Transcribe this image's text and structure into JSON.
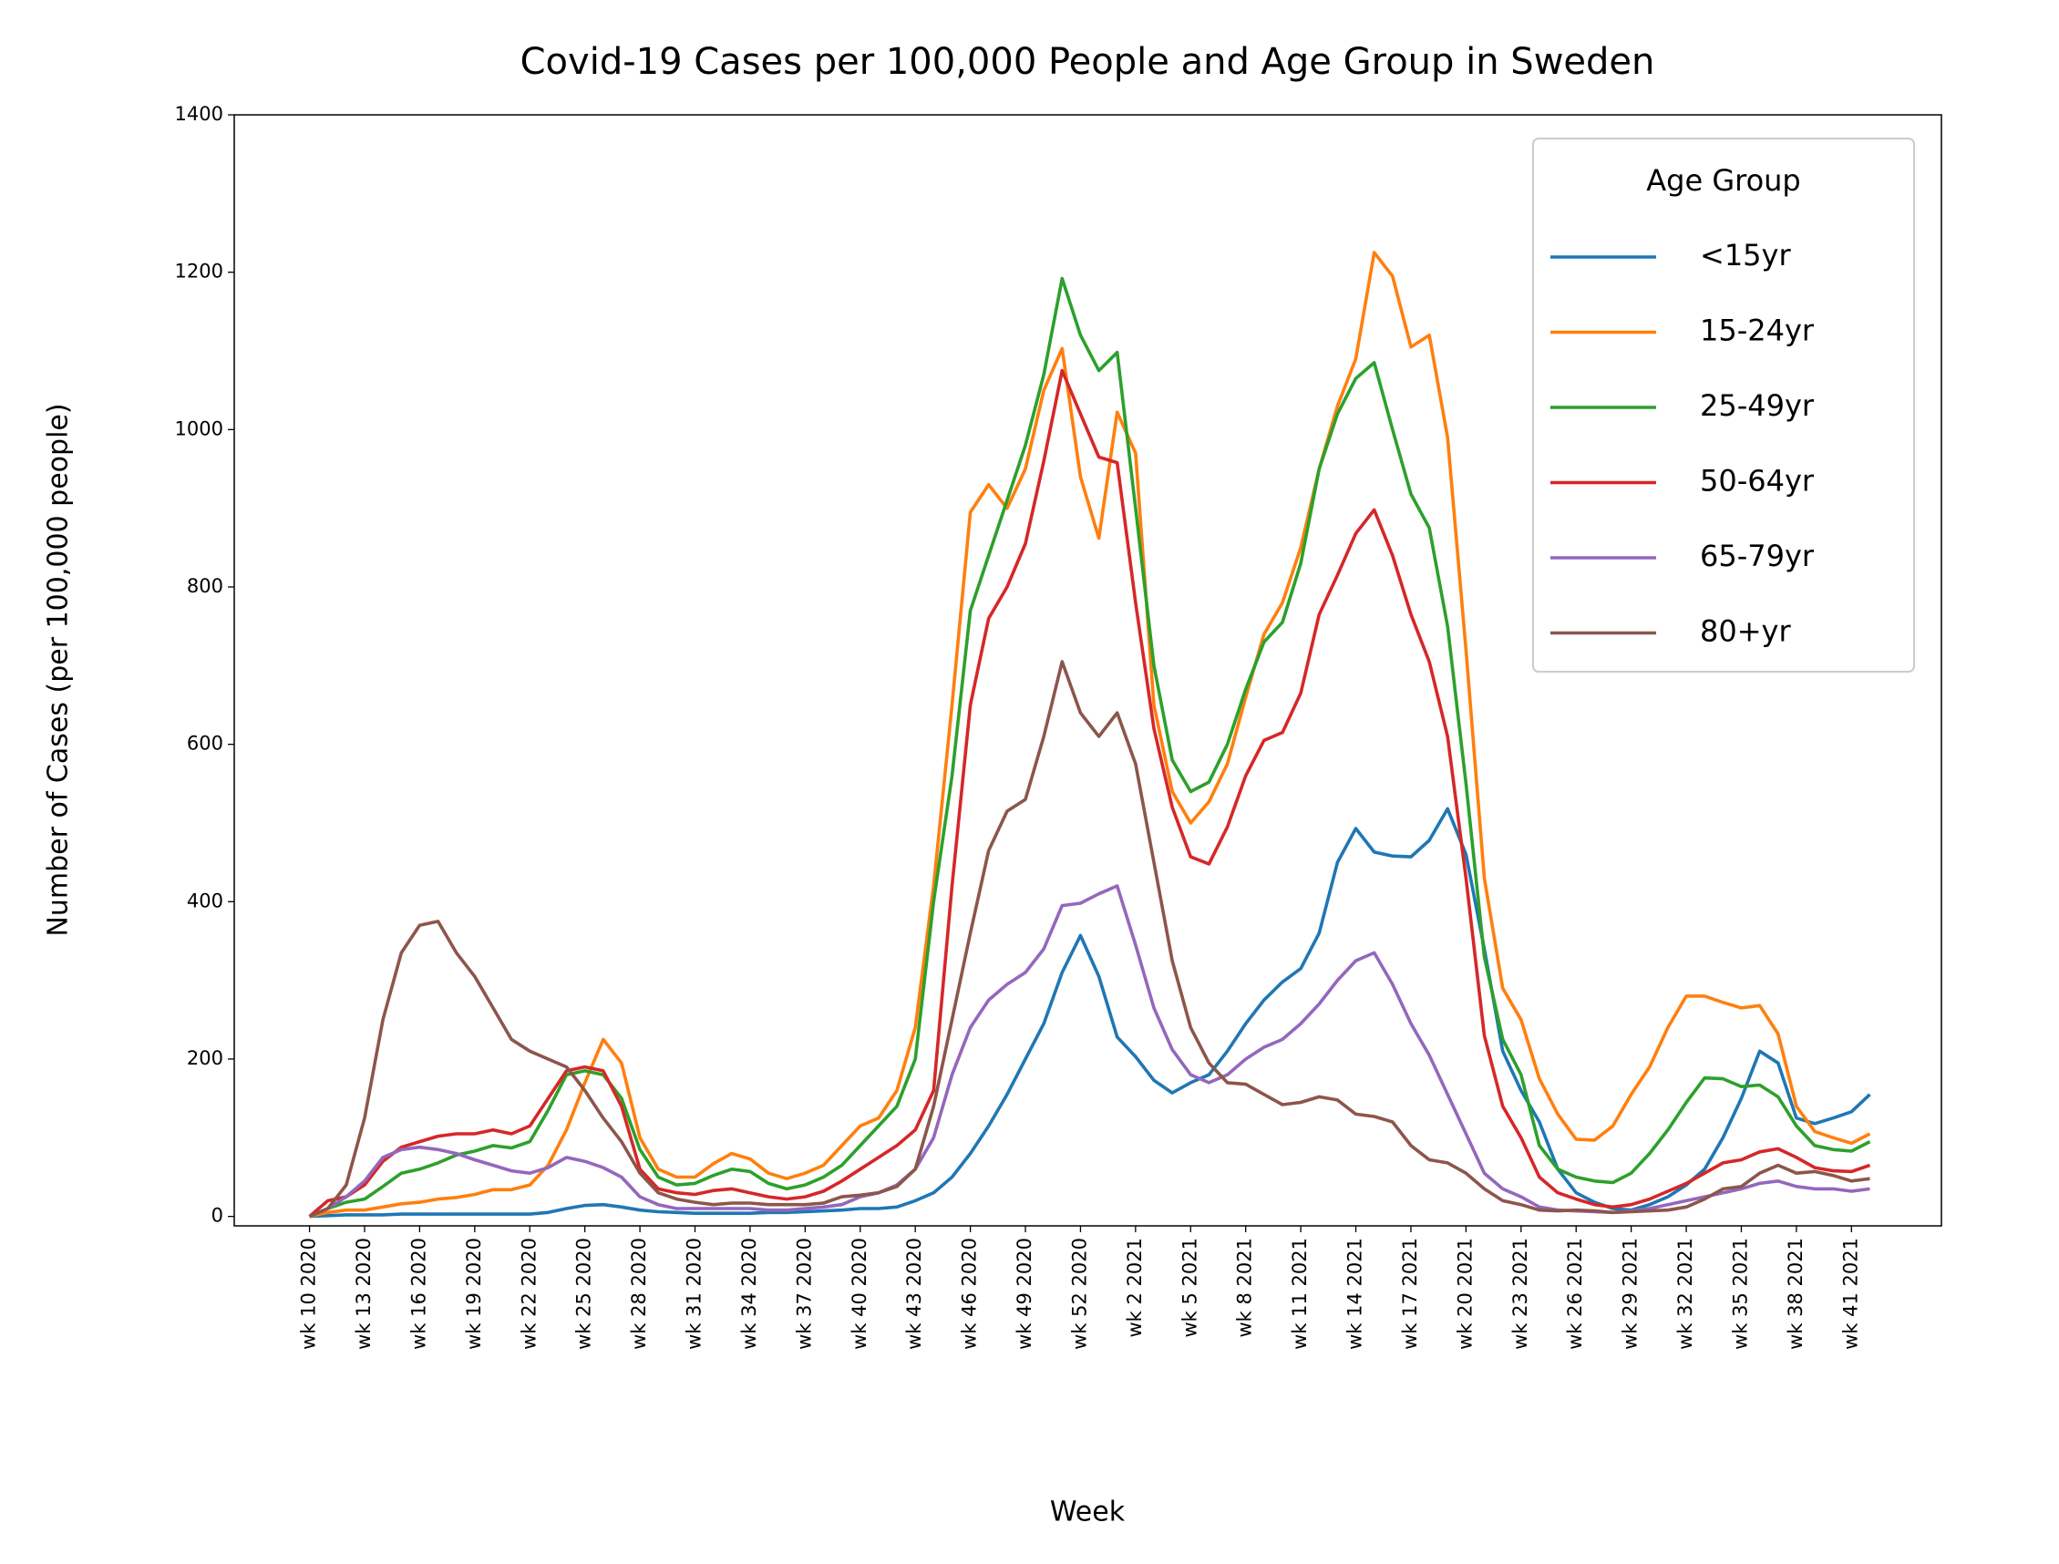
{
  "chart_data": {
    "type": "line",
    "title": "Covid-19 Cases per 100,000 People and Age Group in Sweden",
    "xlabel": "Week",
    "ylabel": "Number of Cases (per 100,000 people)",
    "categories": [
      "wk 10 2020",
      null,
      null,
      "wk 13 2020",
      null,
      null,
      "wk 16 2020",
      null,
      null,
      "wk 19 2020",
      null,
      null,
      "wk 22 2020",
      null,
      null,
      "wk 25 2020",
      null,
      null,
      "wk 28 2020",
      null,
      null,
      "wk 31 2020",
      null,
      null,
      "wk 34 2020",
      null,
      null,
      "wk 37 2020",
      null,
      null,
      "wk 40 2020",
      null,
      null,
      "wk 43 2020",
      null,
      null,
      "wk 46 2020",
      null,
      null,
      "wk 49 2020",
      null,
      null,
      "wk 52 2020",
      null,
      null,
      "wk 2 2021",
      null,
      null,
      "wk 5 2021",
      null,
      null,
      "wk 8 2021",
      null,
      null,
      "wk 11 2021",
      null,
      null,
      "wk 14 2021",
      null,
      null,
      "wk 17 2021",
      null,
      null,
      "wk 20 2021",
      null,
      null,
      "wk 23 2021",
      null,
      null,
      "wk 26 2021",
      null,
      null,
      "wk 29 2021",
      null,
      null,
      "wk 32 2021",
      null,
      null,
      "wk 35 2021",
      null,
      null,
      "wk 38 2021",
      null,
      null,
      "wk 41 2021",
      null
    ],
    "legend_title": "Age Group",
    "legend": "upper right",
    "series": [
      {
        "name": "<15yr",
        "color": "#1f77b4",
        "values": [
          0,
          1,
          2,
          2,
          2,
          3,
          3,
          3,
          3,
          3,
          3,
          3,
          3,
          5,
          10,
          14,
          15,
          12,
          8,
          6,
          5,
          4,
          4,
          4,
          4,
          5,
          5,
          6,
          7,
          8,
          10,
          10,
          12,
          20,
          30,
          50,
          80,
          115,
          155,
          200,
          245,
          310,
          357,
          305,
          228,
          203,
          173,
          157,
          170,
          180,
          210,
          245,
          275,
          298,
          315,
          360,
          450,
          493,
          463,
          458,
          457,
          478,
          518,
          460,
          340,
          210,
          160,
          120,
          60,
          30,
          18,
          10,
          8,
          15,
          25,
          40,
          60,
          100,
          150,
          210,
          195,
          125,
          118,
          125,
          133,
          155
        ]
      },
      {
        "name": "15-24yr",
        "color": "#ff7f0e",
        "values": [
          0,
          5,
          8,
          8,
          12,
          16,
          18,
          22,
          24,
          28,
          34,
          34,
          40,
          65,
          110,
          170,
          225,
          195,
          100,
          60,
          50,
          50,
          67,
          80,
          73,
          55,
          48,
          55,
          65,
          90,
          115,
          125,
          160,
          240,
          420,
          650,
          895,
          930,
          900,
          950,
          1050,
          1103,
          940,
          862,
          1022,
          970,
          650,
          540,
          500,
          527,
          575,
          660,
          740,
          780,
          850,
          950,
          1030,
          1090,
          1225,
          1195,
          1105,
          1120,
          990,
          720,
          430,
          290,
          250,
          175,
          130,
          98,
          97,
          115,
          155,
          190,
          240,
          280,
          280,
          272,
          265,
          268,
          232,
          140,
          108,
          100,
          93,
          105
        ]
      },
      {
        "name": "25-49yr",
        "color": "#2ca02c",
        "values": [
          0,
          10,
          18,
          22,
          38,
          55,
          60,
          68,
          78,
          83,
          90,
          87,
          95,
          135,
          180,
          185,
          180,
          150,
          85,
          50,
          40,
          42,
          52,
          60,
          57,
          42,
          35,
          40,
          50,
          65,
          90,
          115,
          140,
          200,
          400,
          560,
          770,
          840,
          910,
          980,
          1070,
          1192,
          1120,
          1075,
          1098,
          900,
          700,
          580,
          540,
          552,
          600,
          670,
          730,
          755,
          830,
          950,
          1020,
          1065,
          1085,
          1000,
          918,
          875,
          750,
          550,
          330,
          225,
          180,
          90,
          60,
          50,
          45,
          43,
          55,
          80,
          110,
          145,
          176,
          175,
          165,
          167,
          152,
          115,
          90,
          85,
          83,
          95
        ]
      },
      {
        "name": "50-64yr",
        "color": "#d62728",
        "values": [
          0,
          20,
          25,
          40,
          70,
          88,
          95,
          102,
          105,
          105,
          110,
          105,
          115,
          150,
          185,
          190,
          185,
          140,
          60,
          35,
          30,
          28,
          33,
          35,
          30,
          25,
          22,
          25,
          32,
          45,
          60,
          75,
          90,
          110,
          160,
          420,
          650,
          760,
          800,
          855,
          960,
          1075,
          1020,
          965,
          958,
          780,
          620,
          520,
          457,
          448,
          495,
          560,
          605,
          615,
          665,
          765,
          815,
          868,
          898,
          840,
          765,
          705,
          610,
          430,
          230,
          140,
          100,
          50,
          30,
          22,
          15,
          12,
          15,
          22,
          32,
          42,
          55,
          68,
          72,
          82,
          86,
          75,
          62,
          58,
          57,
          65
        ]
      },
      {
        "name": "65-79yr",
        "color": "#9467bd",
        "values": [
          0,
          10,
          25,
          45,
          75,
          85,
          88,
          85,
          80,
          72,
          65,
          58,
          55,
          62,
          75,
          70,
          62,
          50,
          25,
          15,
          10,
          10,
          10,
          10,
          10,
          8,
          8,
          10,
          12,
          15,
          25,
          30,
          40,
          60,
          100,
          180,
          240,
          275,
          295,
          310,
          340,
          395,
          398,
          410,
          420,
          345,
          265,
          212,
          180,
          170,
          180,
          200,
          215,
          225,
          245,
          270,
          300,
          325,
          335,
          295,
          245,
          205,
          155,
          105,
          55,
          35,
          25,
          12,
          8,
          7,
          6,
          5,
          7,
          10,
          15,
          20,
          25,
          30,
          35,
          42,
          45,
          38,
          35,
          35,
          32,
          35
        ]
      },
      {
        "name": "80+yr",
        "color": "#8c564b",
        "values": [
          0,
          10,
          40,
          125,
          250,
          335,
          370,
          375,
          335,
          305,
          265,
          225,
          210,
          200,
          190,
          160,
          125,
          95,
          55,
          30,
          22,
          18,
          15,
          17,
          17,
          15,
          15,
          15,
          17,
          25,
          27,
          30,
          38,
          60,
          140,
          250,
          360,
          465,
          515,
          530,
          610,
          705,
          640,
          610,
          640,
          575,
          450,
          325,
          240,
          195,
          170,
          168,
          155,
          142,
          145,
          152,
          148,
          130,
          127,
          120,
          90,
          72,
          68,
          55,
          35,
          20,
          15,
          8,
          7,
          8,
          7,
          5,
          6,
          7,
          8,
          12,
          22,
          35,
          38,
          55,
          65,
          55,
          57,
          52,
          45,
          48
        ]
      }
    ],
    "ylim": [
      -12,
      1400
    ],
    "yticks": [
      0,
      200,
      400,
      600,
      800,
      1000,
      1200,
      1400
    ]
  }
}
